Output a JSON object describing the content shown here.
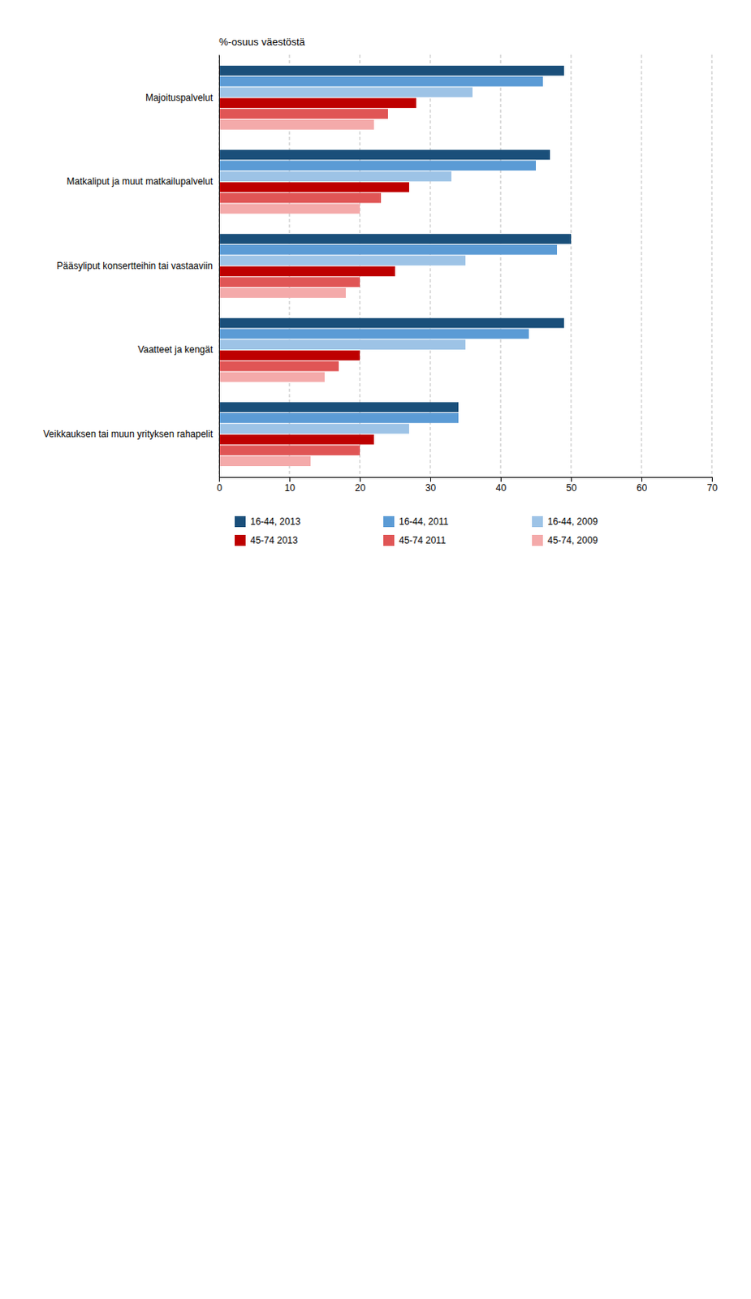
{
  "chart_data": {
    "type": "bar",
    "orientation": "horizontal",
    "xlabel": "%-osuus väestöstä",
    "categories": [
      "Majoituspalvelut",
      "Matkaliput ja muut matkailupalvelut",
      "Pääsyliput konsertteihin tai vastaaviin",
      "Vaatteet ja kengät",
      "Veikkauksen tai muun yrityksen rahapelit"
    ],
    "series": [
      {
        "name": "16-44, 2013",
        "color": "#1a4f7a",
        "values": [
          49,
          47,
          50,
          49,
          34
        ]
      },
      {
        "name": "16-44, 2011",
        "color": "#5b9bd5",
        "values": [
          46,
          45,
          48,
          44,
          34
        ]
      },
      {
        "name": "16-44, 2009",
        "color": "#9dc3e6",
        "values": [
          36,
          33,
          35,
          35,
          27
        ]
      },
      {
        "name": "45-74 2013",
        "color": "#be0000",
        "values": [
          28,
          27,
          25,
          20,
          22
        ]
      },
      {
        "name": "45-74 2011",
        "color": "#e05555",
        "values": [
          24,
          23,
          20,
          17,
          20
        ]
      },
      {
        "name": "45-74, 2009",
        "color": "#f4aaaa",
        "values": [
          22,
          20,
          18,
          15,
          13
        ]
      }
    ],
    "xlim": [
      0,
      70
    ],
    "xticks": [
      0,
      10,
      20,
      30,
      40,
      50,
      60,
      70
    ],
    "grid": true,
    "legend": "bottom"
  }
}
